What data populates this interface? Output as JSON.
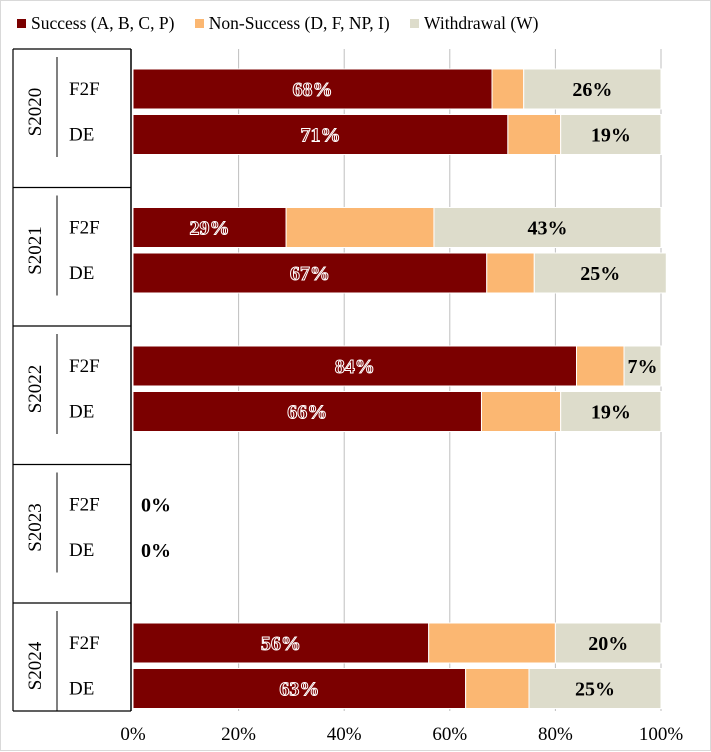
{
  "chart_data": {
    "type": "bar",
    "stacked": true,
    "orientation": "horizontal",
    "xlim": [
      0,
      100
    ],
    "x_ticks": [
      "0%",
      "20%",
      "40%",
      "60%",
      "80%",
      "100%"
    ],
    "grid": "vertical",
    "legend_position": "top",
    "groups": [
      {
        "label": "S2020",
        "rows": [
          {
            "label": "F2F",
            "values": [
              68,
              6,
              26
            ],
            "labels": [
              "68%",
              "",
              "26%"
            ]
          },
          {
            "label": "DE",
            "values": [
              71,
              10,
              19
            ],
            "labels": [
              "71%",
              "",
              "19%"
            ]
          }
        ]
      },
      {
        "label": "S2021",
        "rows": [
          {
            "label": "F2F",
            "values": [
              29,
              28,
              43
            ],
            "labels": [
              "29%",
              "",
              "43%"
            ]
          },
          {
            "label": "DE",
            "values": [
              67,
              9,
              25
            ],
            "labels": [
              "67%",
              "",
              "25%"
            ]
          }
        ]
      },
      {
        "label": "S2022",
        "rows": [
          {
            "label": "F2F",
            "values": [
              84,
              9,
              7
            ],
            "labels": [
              "84%",
              "",
              "7%"
            ]
          },
          {
            "label": "DE",
            "values": [
              66,
              15,
              19
            ],
            "labels": [
              "66%",
              "",
              "19%"
            ]
          }
        ]
      },
      {
        "label": "S2023",
        "rows": [
          {
            "label": "F2F",
            "values": [
              0,
              0,
              0
            ],
            "labels": [
              "0%",
              "",
              ""
            ]
          },
          {
            "label": "DE",
            "values": [
              0,
              0,
              0
            ],
            "labels": [
              "0%",
              "",
              ""
            ]
          }
        ]
      },
      {
        "label": "S2024",
        "rows": [
          {
            "label": "F2F",
            "values": [
              56,
              24,
              20
            ],
            "labels": [
              "56%",
              "",
              "20%"
            ]
          },
          {
            "label": "DE",
            "values": [
              63,
              12,
              25
            ],
            "labels": [
              "63%",
              "",
              "25%"
            ]
          }
        ]
      }
    ],
    "series": [
      {
        "name": "Success (A, B, C, P)",
        "color": "#7b0000"
      },
      {
        "name": "Non-Success (D, F, NP, I)",
        "color": "#fbb772"
      },
      {
        "name": "Withdrawal (W)",
        "color": "#dddccb"
      }
    ]
  }
}
